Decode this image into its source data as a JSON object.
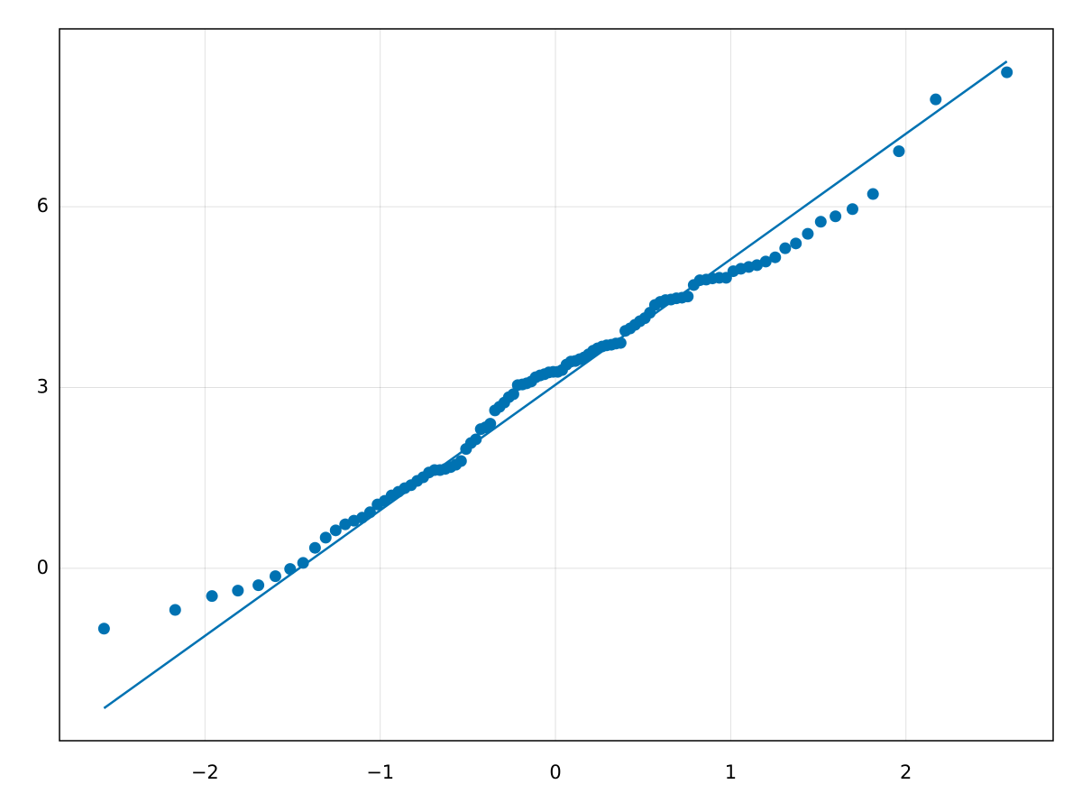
{
  "chart_data": {
    "type": "scatter",
    "xlim": [
      -2.83,
      2.84
    ],
    "ylim": [
      -2.86,
      8.95
    ],
    "xticks": [
      {
        "value": -2,
        "label": "−2"
      },
      {
        "value": -1,
        "label": "−1"
      },
      0,
      1,
      2
    ],
    "yticks": [
      0,
      3,
      6
    ],
    "grid": true,
    "series": [
      {
        "type": "scatter",
        "color": "#0072b2",
        "x": [
          -2.576,
          -2.17,
          -1.96,
          -1.812,
          -1.695,
          -1.598,
          -1.514,
          -1.44,
          -1.372,
          -1.311,
          -1.254,
          -1.2,
          -1.15,
          -1.103,
          -1.058,
          -1.015,
          -0.974,
          -0.935,
          -0.896,
          -0.86,
          -0.824,
          -0.789,
          -0.755,
          -0.722,
          -0.69,
          -0.659,
          -0.628,
          -0.598,
          -0.568,
          -0.539,
          -0.51,
          -0.482,
          -0.454,
          -0.426,
          -0.399,
          -0.372,
          -0.345,
          -0.319,
          -0.292,
          -0.266,
          -0.24,
          -0.215,
          -0.189,
          -0.164,
          -0.138,
          -0.113,
          -0.088,
          -0.063,
          -0.038,
          -0.013,
          0.013,
          0.038,
          0.063,
          0.088,
          0.113,
          0.138,
          0.164,
          0.189,
          0.215,
          0.24,
          0.266,
          0.292,
          0.319,
          0.345,
          0.372,
          0.399,
          0.426,
          0.454,
          0.482,
          0.51,
          0.539,
          0.568,
          0.598,
          0.628,
          0.659,
          0.69,
          0.722,
          0.755,
          0.789,
          0.824,
          0.86,
          0.896,
          0.935,
          0.974,
          1.015,
          1.058,
          1.103,
          1.15,
          1.2,
          1.254,
          1.311,
          1.372,
          1.44,
          1.514,
          1.598,
          1.695,
          1.812,
          1.96,
          2.17,
          2.576
        ],
        "values": [
          -1.0,
          -0.69,
          -0.46,
          -0.37,
          -0.28,
          -0.13,
          -0.01,
          0.09,
          0.34,
          0.51,
          0.63,
          0.73,
          0.79,
          0.84,
          0.93,
          1.06,
          1.12,
          1.21,
          1.27,
          1.33,
          1.38,
          1.45,
          1.51,
          1.59,
          1.63,
          1.63,
          1.65,
          1.68,
          1.72,
          1.78,
          1.98,
          2.08,
          2.14,
          2.31,
          2.34,
          2.4,
          2.62,
          2.68,
          2.75,
          2.84,
          2.89,
          3.04,
          3.05,
          3.07,
          3.1,
          3.17,
          3.2,
          3.22,
          3.25,
          3.26,
          3.26,
          3.29,
          3.38,
          3.43,
          3.44,
          3.47,
          3.5,
          3.55,
          3.61,
          3.65,
          3.68,
          3.7,
          3.71,
          3.73,
          3.74,
          3.94,
          3.98,
          4.04,
          4.1,
          4.15,
          4.24,
          4.37,
          4.42,
          4.45,
          4.46,
          4.48,
          4.49,
          4.51,
          4.7,
          4.78,
          4.79,
          4.81,
          4.82,
          4.82,
          4.93,
          4.97,
          5.0,
          5.03,
          5.09,
          5.16,
          5.31,
          5.39,
          5.55,
          5.75,
          5.84,
          5.96,
          6.21,
          6.92,
          7.78,
          8.23
        ]
      },
      {
        "type": "line",
        "color": "#0072b2",
        "x": [
          -2.576,
          2.576
        ],
        "values": [
          -2.32,
          8.41
        ]
      }
    ]
  }
}
